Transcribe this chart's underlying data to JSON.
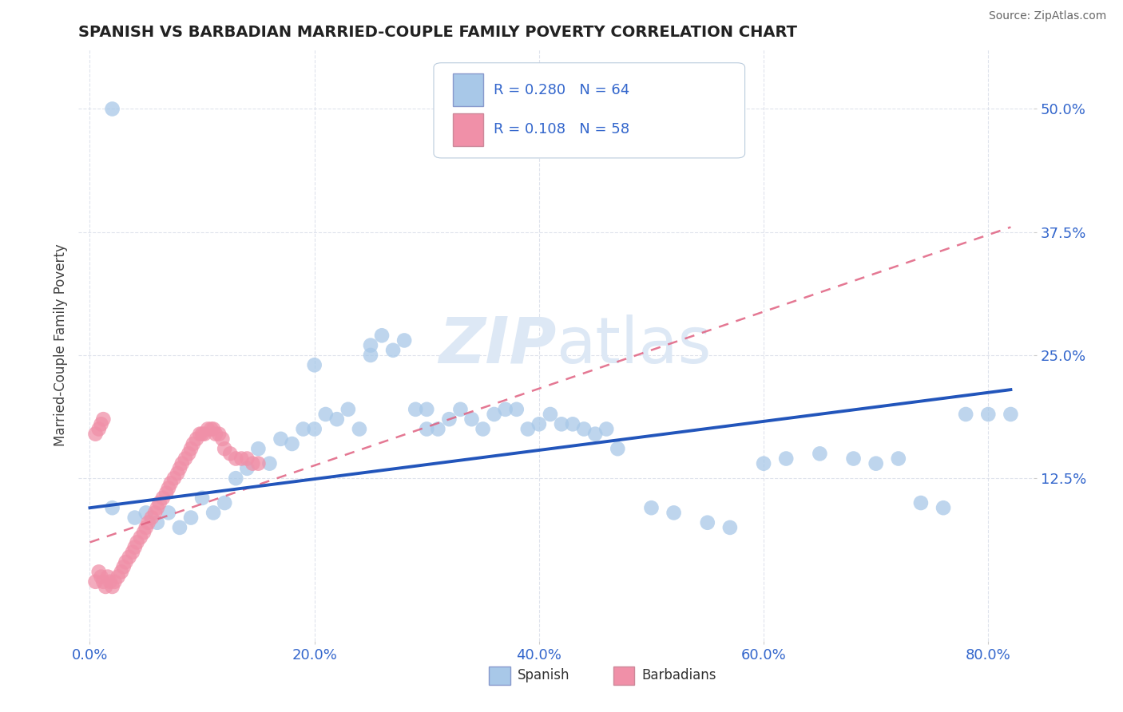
{
  "title": "SPANISH VS BARBADIAN MARRIED-COUPLE FAMILY POVERTY CORRELATION CHART",
  "source": "Source: ZipAtlas.com",
  "ylabel_label": "Married-Couple Family Poverty",
  "x_tick_labels": [
    "0.0%",
    "20.0%",
    "40.0%",
    "60.0%",
    "80.0%"
  ],
  "x_tick_values": [
    0.0,
    0.2,
    0.4,
    0.6,
    0.8
  ],
  "y_tick_labels": [
    "12.5%",
    "25.0%",
    "37.5%",
    "50.0%"
  ],
  "y_tick_values": [
    0.125,
    0.25,
    0.375,
    0.5
  ],
  "xlim": [
    -0.01,
    0.84
  ],
  "ylim": [
    -0.04,
    0.56
  ],
  "legend_bottom_label1": "Spanish",
  "legend_bottom_label2": "Barbadians",
  "spanish_color": "#a8c8e8",
  "barbadian_color": "#f090a8",
  "spanish_line_color": "#2255bb",
  "barbadian_line_color": "#e06080",
  "background_color": "#ffffff",
  "watermark_color": "#dde8f5",
  "grid_color": "#d8dde8",
  "spanish_x": [
    0.02,
    0.04,
    0.05,
    0.06,
    0.07,
    0.08,
    0.09,
    0.1,
    0.11,
    0.12,
    0.13,
    0.14,
    0.15,
    0.16,
    0.17,
    0.18,
    0.19,
    0.2,
    0.21,
    0.22,
    0.23,
    0.24,
    0.25,
    0.26,
    0.27,
    0.28,
    0.29,
    0.3,
    0.31,
    0.32,
    0.33,
    0.34,
    0.35,
    0.36,
    0.37,
    0.38,
    0.39,
    0.4,
    0.41,
    0.42,
    0.43,
    0.44,
    0.45,
    0.46,
    0.47,
    0.5,
    0.52,
    0.55,
    0.57,
    0.6,
    0.62,
    0.65,
    0.68,
    0.7,
    0.72,
    0.74,
    0.76,
    0.78,
    0.8,
    0.82,
    0.2,
    0.25,
    0.3,
    0.02
  ],
  "spanish_y": [
    0.095,
    0.085,
    0.09,
    0.08,
    0.09,
    0.075,
    0.085,
    0.105,
    0.09,
    0.1,
    0.125,
    0.135,
    0.155,
    0.14,
    0.165,
    0.16,
    0.175,
    0.175,
    0.19,
    0.185,
    0.195,
    0.175,
    0.26,
    0.27,
    0.255,
    0.265,
    0.195,
    0.175,
    0.175,
    0.185,
    0.195,
    0.185,
    0.175,
    0.19,
    0.195,
    0.195,
    0.175,
    0.18,
    0.19,
    0.18,
    0.18,
    0.175,
    0.17,
    0.175,
    0.155,
    0.095,
    0.09,
    0.08,
    0.075,
    0.14,
    0.145,
    0.15,
    0.145,
    0.14,
    0.145,
    0.1,
    0.095,
    0.19,
    0.19,
    0.19,
    0.24,
    0.25,
    0.195,
    0.5
  ],
  "barbadian_x": [
    0.005,
    0.008,
    0.01,
    0.012,
    0.014,
    0.016,
    0.018,
    0.02,
    0.022,
    0.025,
    0.028,
    0.03,
    0.032,
    0.035,
    0.038,
    0.04,
    0.042,
    0.045,
    0.048,
    0.05,
    0.052,
    0.055,
    0.058,
    0.06,
    0.062,
    0.065,
    0.068,
    0.07,
    0.072,
    0.075,
    0.078,
    0.08,
    0.082,
    0.085,
    0.088,
    0.09,
    0.092,
    0.095,
    0.098,
    0.1,
    0.102,
    0.105,
    0.108,
    0.11,
    0.112,
    0.115,
    0.118,
    0.12,
    0.125,
    0.13,
    0.135,
    0.14,
    0.145,
    0.15,
    0.005,
    0.008,
    0.01,
    0.012
  ],
  "barbadian_y": [
    0.02,
    0.03,
    0.025,
    0.02,
    0.015,
    0.025,
    0.02,
    0.015,
    0.02,
    0.025,
    0.03,
    0.035,
    0.04,
    0.045,
    0.05,
    0.055,
    0.06,
    0.065,
    0.07,
    0.075,
    0.08,
    0.085,
    0.09,
    0.095,
    0.1,
    0.105,
    0.11,
    0.115,
    0.12,
    0.125,
    0.13,
    0.135,
    0.14,
    0.145,
    0.15,
    0.155,
    0.16,
    0.165,
    0.17,
    0.17,
    0.17,
    0.175,
    0.175,
    0.175,
    0.17,
    0.17,
    0.165,
    0.155,
    0.15,
    0.145,
    0.145,
    0.145,
    0.14,
    0.14,
    0.17,
    0.175,
    0.18,
    0.185
  ],
  "spanish_line_x": [
    0.0,
    0.82
  ],
  "spanish_line_y": [
    0.095,
    0.215
  ],
  "barbadian_line_x": [
    0.0,
    0.82
  ],
  "barbadian_line_y": [
    0.06,
    0.38
  ]
}
